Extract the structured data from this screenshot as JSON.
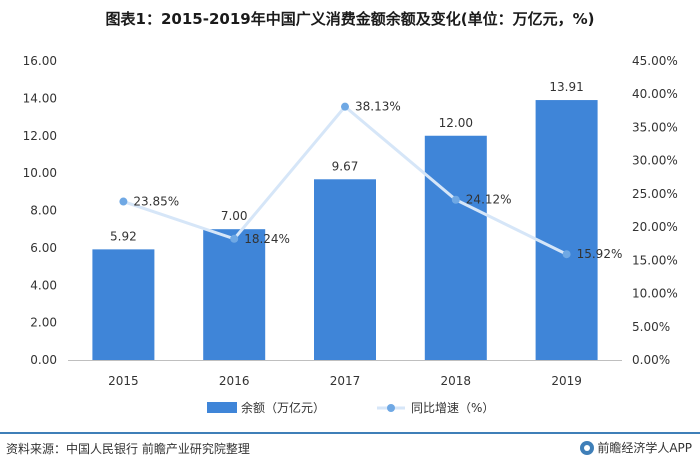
{
  "title": "图表1：2015-2019年中国广义消费金额余额及变化(单位：万亿元，%)",
  "source": "资料来源：中国人民银行 前瞻产业研究院整理",
  "brand": "前瞻经济学人APP",
  "chart_data": {
    "type": "bar",
    "categories": [
      "2015",
      "2016",
      "2017",
      "2018",
      "2019"
    ],
    "series": [
      {
        "name": "余额（万亿元）",
        "type": "bar",
        "axis": "left",
        "values": [
          5.92,
          7.0,
          9.67,
          12.0,
          13.91
        ],
        "labels": [
          "5.92",
          "7.00",
          "9.67",
          "12.00",
          "13.91"
        ]
      },
      {
        "name": "同比增速（%）",
        "type": "line",
        "axis": "right",
        "values": [
          23.85,
          18.24,
          38.13,
          24.12,
          15.92
        ],
        "labels": [
          "23.85%",
          "18.24%",
          "38.13%",
          "24.12%",
          "15.92%"
        ]
      }
    ],
    "ylim_left": [
      0,
      16
    ],
    "ylim_right": [
      0,
      45
    ],
    "yticks_left": [
      "0.00",
      "2.00",
      "4.00",
      "6.00",
      "8.00",
      "10.00",
      "12.00",
      "14.00",
      "16.00"
    ],
    "yticks_right": [
      "0.00%",
      "5.00%",
      "10.00%",
      "15.00%",
      "20.00%",
      "25.00%",
      "30.00%",
      "35.00%",
      "40.00%",
      "45.00%"
    ],
    "grid": false,
    "legend_position": "bottom",
    "colors": {
      "bar": "#3f85d8",
      "line": "#d6e6f8",
      "marker": "#6fa8e4",
      "axis": "#bfbfbf",
      "text": "#333333"
    }
  }
}
